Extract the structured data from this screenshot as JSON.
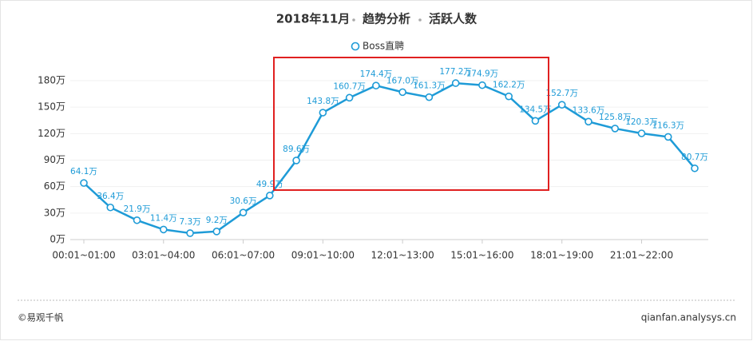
{
  "chart_data": {
    "type": "line",
    "title_parts": [
      "2018年11月",
      "趋势分析",
      "活跃人数"
    ],
    "categories": [
      "00:01~01:00",
      null,
      null,
      "03:01~04:00",
      null,
      null,
      "06:01~07:00",
      null,
      null,
      "09:01~10:00",
      null,
      null,
      "12:01~13:00",
      null,
      null,
      "15:01~16:00",
      null,
      null,
      "18:01~19:00",
      null,
      null,
      "21:01~22:00",
      null,
      null
    ],
    "series": [
      {
        "name": "Boss直聘",
        "color": "#1e9bd7",
        "values": [
          64.1,
          36.4,
          21.9,
          11.4,
          7.3,
          9.2,
          30.6,
          49.9,
          89.6,
          143.8,
          160.7,
          174.4,
          167.0,
          161.3,
          177.2,
          174.9,
          162.2,
          134.5,
          152.7,
          133.6,
          125.8,
          120.3,
          116.3,
          80.7
        ],
        "value_labels": [
          "64.1万",
          "36.4万",
          "21.9万",
          "11.4万",
          "7.3万",
          "9.2万",
          "30.6万",
          "49.9万",
          "89.6万",
          "143.8万",
          "160.7万",
          "174.4万",
          "167.0万",
          "161.3万",
          "177.2万",
          "174.9万",
          "162.2万",
          "134.5万",
          "152.7万",
          "133.6万",
          "125.8万",
          "120.3万",
          "116.3万",
          "80.7万"
        ]
      }
    ],
    "ylim": [
      0,
      180
    ],
    "yticks": [
      {
        "value": 0,
        "label": "0万"
      },
      {
        "value": 30,
        "label": "30万"
      },
      {
        "value": 60,
        "label": "60万"
      },
      {
        "value": 90,
        "label": "90万"
      },
      {
        "value": 120,
        "label": "120万"
      },
      {
        "value": 150,
        "label": "150万"
      },
      {
        "value": 180,
        "label": "180万"
      }
    ],
    "grid": true,
    "source": "©易观千帆",
    "website": "qianfan.analysys.cn"
  }
}
